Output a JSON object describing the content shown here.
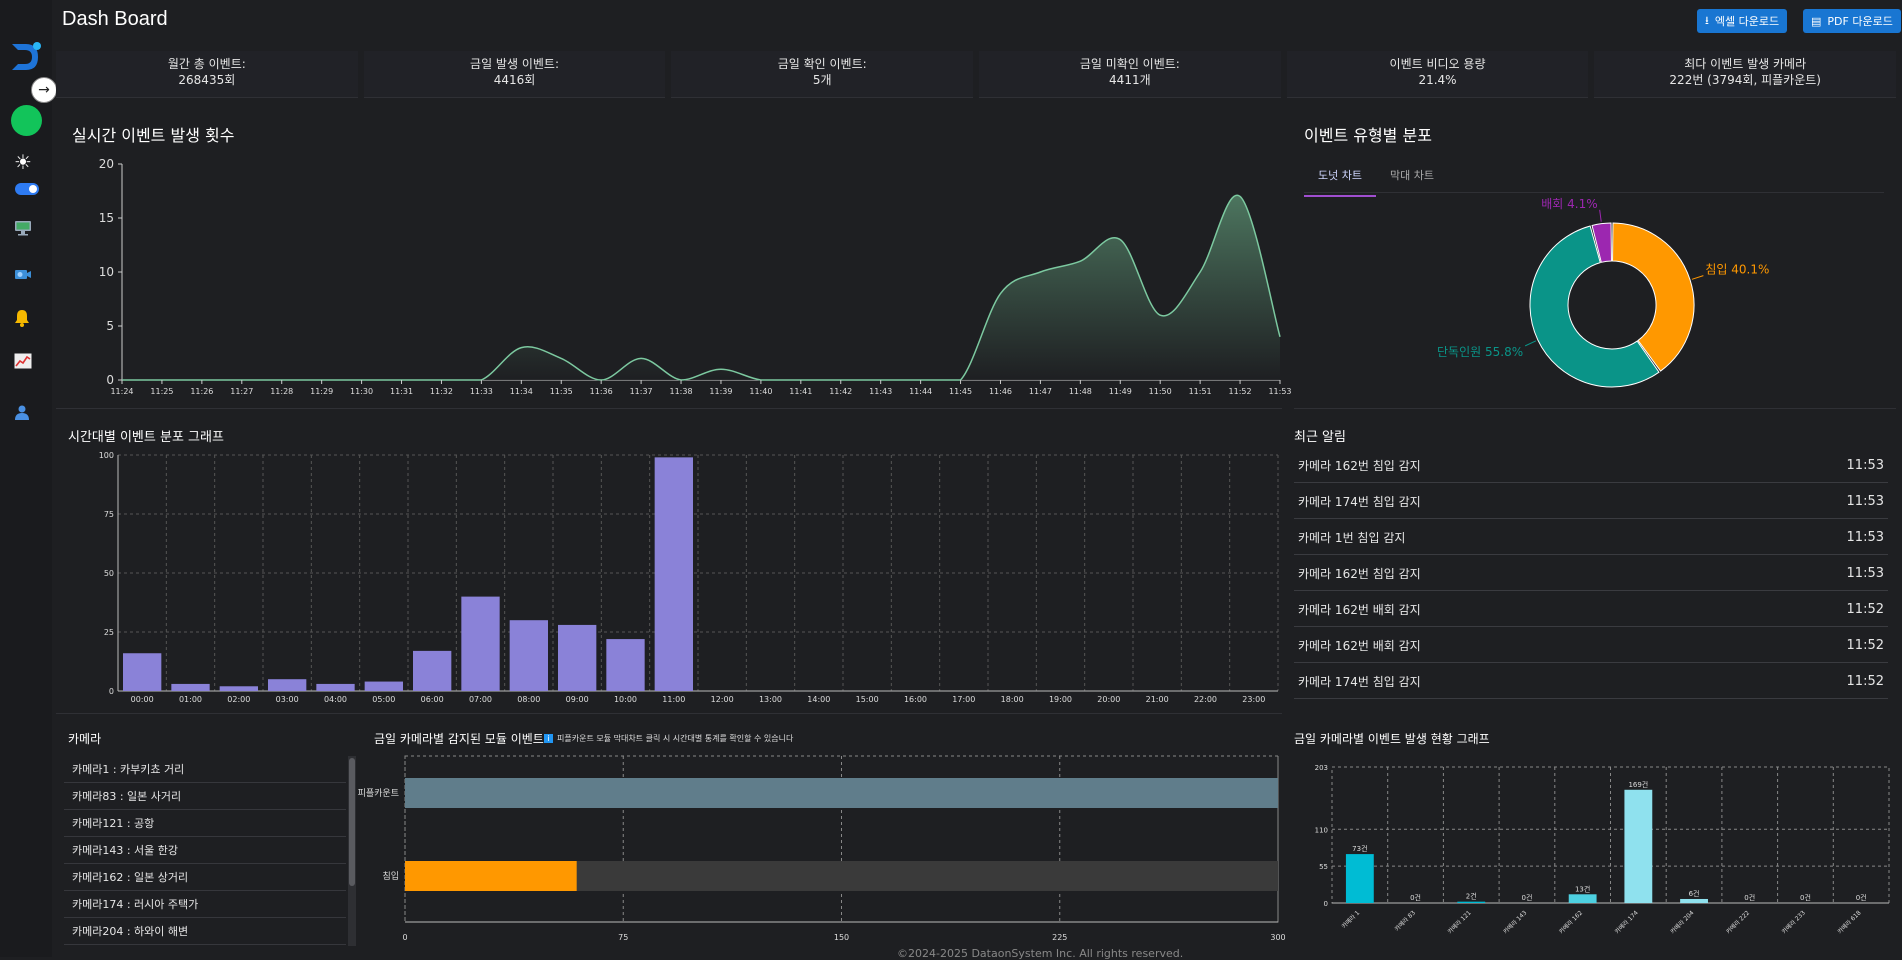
{
  "app": {
    "title": "Dash Board",
    "footer": "©2024-2025 DataonSystem Inc. All rights reserved."
  },
  "header": {
    "excel_label": "엑셀 다운로드",
    "pdf_label": "PDF 다운로드"
  },
  "stats": [
    {
      "label": "월간 총 이벤트:",
      "value": "268435회"
    },
    {
      "label": "금일 발생 이벤트:",
      "value": "4416회"
    },
    {
      "label": "금일 확인 이벤트:",
      "value": "5개"
    },
    {
      "label": "금일 미확인 이벤트:",
      "value": "4411개"
    },
    {
      "label": "이벤트 비디오 용량",
      "value": "21.4%"
    },
    {
      "label": "최다 이벤트 발생 카메라",
      "value": "222번 (3794회, 피플카운트)"
    }
  ],
  "sidebar": {
    "icons": [
      "logo-icon",
      "expand-icon",
      "status-icon",
      "sun-icon",
      "theme-toggle",
      "monitor-icon",
      "camera-icon",
      "bell-icon",
      "chart-icon",
      "user-icon"
    ]
  },
  "realtime": {
    "title": "실시간 이벤트 발생 횟수",
    "chart_data": {
      "type": "area",
      "x": [
        "11:24",
        "11:25",
        "11:26",
        "11:27",
        "11:28",
        "11:29",
        "11:30",
        "11:31",
        "11:32",
        "11:33",
        "11:34",
        "11:35",
        "11:36",
        "11:37",
        "11:38",
        "11:39",
        "11:40",
        "11:41",
        "11:42",
        "11:43",
        "11:44",
        "11:45",
        "11:46",
        "11:47",
        "11:48",
        "11:49",
        "11:50",
        "11:51",
        "11:52",
        "11:53"
      ],
      "values": [
        0,
        0,
        0,
        0,
        0,
        0,
        0,
        0,
        0,
        0,
        3,
        2,
        0,
        2,
        0,
        1,
        0,
        0,
        0,
        0,
        0,
        0,
        8,
        10,
        11,
        13,
        6,
        10,
        17,
        4
      ],
      "ylim": [
        0,
        20
      ],
      "yticks": [
        0,
        5,
        10,
        15,
        20
      ],
      "color": "#7cc9a0"
    }
  },
  "donut": {
    "title": "이벤트 유형별 분포",
    "tabs": [
      "도넛 차트",
      "막대 차트"
    ],
    "chart_data": {
      "type": "pie",
      "slices": [
        {
          "label": "침입 40.1%",
          "value": 40.1,
          "color": "#ff9800"
        },
        {
          "label": "단독인원 55.8%",
          "value": 55.8,
          "color": "#0a9488"
        },
        {
          "label": "배회 4.1%",
          "value": 4.1,
          "color": "#9c27b0"
        }
      ]
    }
  },
  "hourly": {
    "title": "시간대별 이벤트 분포 그래프",
    "chart_data": {
      "type": "bar",
      "categories": [
        "00:00",
        "01:00",
        "02:00",
        "03:00",
        "04:00",
        "05:00",
        "06:00",
        "07:00",
        "08:00",
        "09:00",
        "10:00",
        "11:00",
        "12:00",
        "13:00",
        "14:00",
        "15:00",
        "16:00",
        "17:00",
        "18:00",
        "19:00",
        "20:00",
        "21:00",
        "22:00",
        "23:00"
      ],
      "values": [
        16,
        3,
        2,
        5,
        3,
        4,
        17,
        40,
        30,
        28,
        22,
        99,
        0,
        0,
        0,
        0,
        0,
        0,
        0,
        0,
        0,
        0,
        0,
        0
      ],
      "ylim": [
        0,
        100
      ],
      "yticks": [
        0,
        25,
        50,
        75,
        100
      ],
      "color": "#8a82d8"
    }
  },
  "alerts": {
    "title": "최근 알림",
    "items": [
      {
        "text": "카메라 162번 침입 감지",
        "time": "11:53"
      },
      {
        "text": "카메라 174번 침입 감지",
        "time": "11:53"
      },
      {
        "text": "카메라 1번 침입 감지",
        "time": "11:53"
      },
      {
        "text": "카메라 162번 침입 감지",
        "time": "11:53"
      },
      {
        "text": "카메라 162번 배회 감지",
        "time": "11:52"
      },
      {
        "text": "카메라 162번 배회 감지",
        "time": "11:52"
      },
      {
        "text": "카메라 174번 침입 감지",
        "time": "11:52"
      }
    ]
  },
  "cameras": {
    "title": "카메라",
    "items": [
      "카메라1 : 카부키쵸 거리",
      "카메라83 : 일본 사거리",
      "카메라121 : 공항",
      "카메라143 : 서울 한강",
      "카메라162 : 일본 상거리",
      "카메라174 : 러시아 주택가",
      "카메라204 : 하와이 해변"
    ]
  },
  "modules": {
    "title": "금일 카메라별 감지된 모듈 이벤트",
    "hint": "피플카운트 모듈 막대차트 클릭 시 시간대별 통계를 확인할 수 있습니다",
    "chart_data": {
      "type": "bar",
      "orientation": "horizontal",
      "categories": [
        "피플카운트",
        "침입"
      ],
      "values": [
        300,
        59
      ],
      "xlim": [
        0,
        300
      ],
      "xticks": [
        0,
        75,
        150,
        225,
        300
      ],
      "colors": [
        "#607d8b",
        "#ff9800"
      ]
    }
  },
  "camera_events": {
    "title": "금일 카메라별 이벤트 발생 현황 그래프",
    "chart_data": {
      "type": "bar",
      "categories": [
        "카메라 1",
        "카메라 83",
        "카메라 121",
        "카메라 143",
        "카메라 162",
        "카메라 174",
        "카메라 204",
        "카메라 222",
        "카메라 233",
        "카메라 618"
      ],
      "values": [
        73,
        0,
        2,
        0,
        13,
        169,
        6,
        0,
        0,
        0
      ],
      "data_labels": [
        "73건",
        "0건",
        "2건",
        "0건",
        "13건",
        "169건",
        "6건",
        "0건",
        "0건",
        "0건"
      ],
      "ylim": [
        0,
        203
      ],
      "yticks": [
        0,
        55,
        110,
        203
      ],
      "colors": [
        "#00bcd4",
        "#00bcd4",
        "#00bcd4",
        "#00bcd4",
        "#4dd0e1",
        "#8fe1ee",
        "#8fe1ee",
        "#8fe1ee",
        "#8fe1ee",
        "#8fe1ee"
      ]
    }
  }
}
